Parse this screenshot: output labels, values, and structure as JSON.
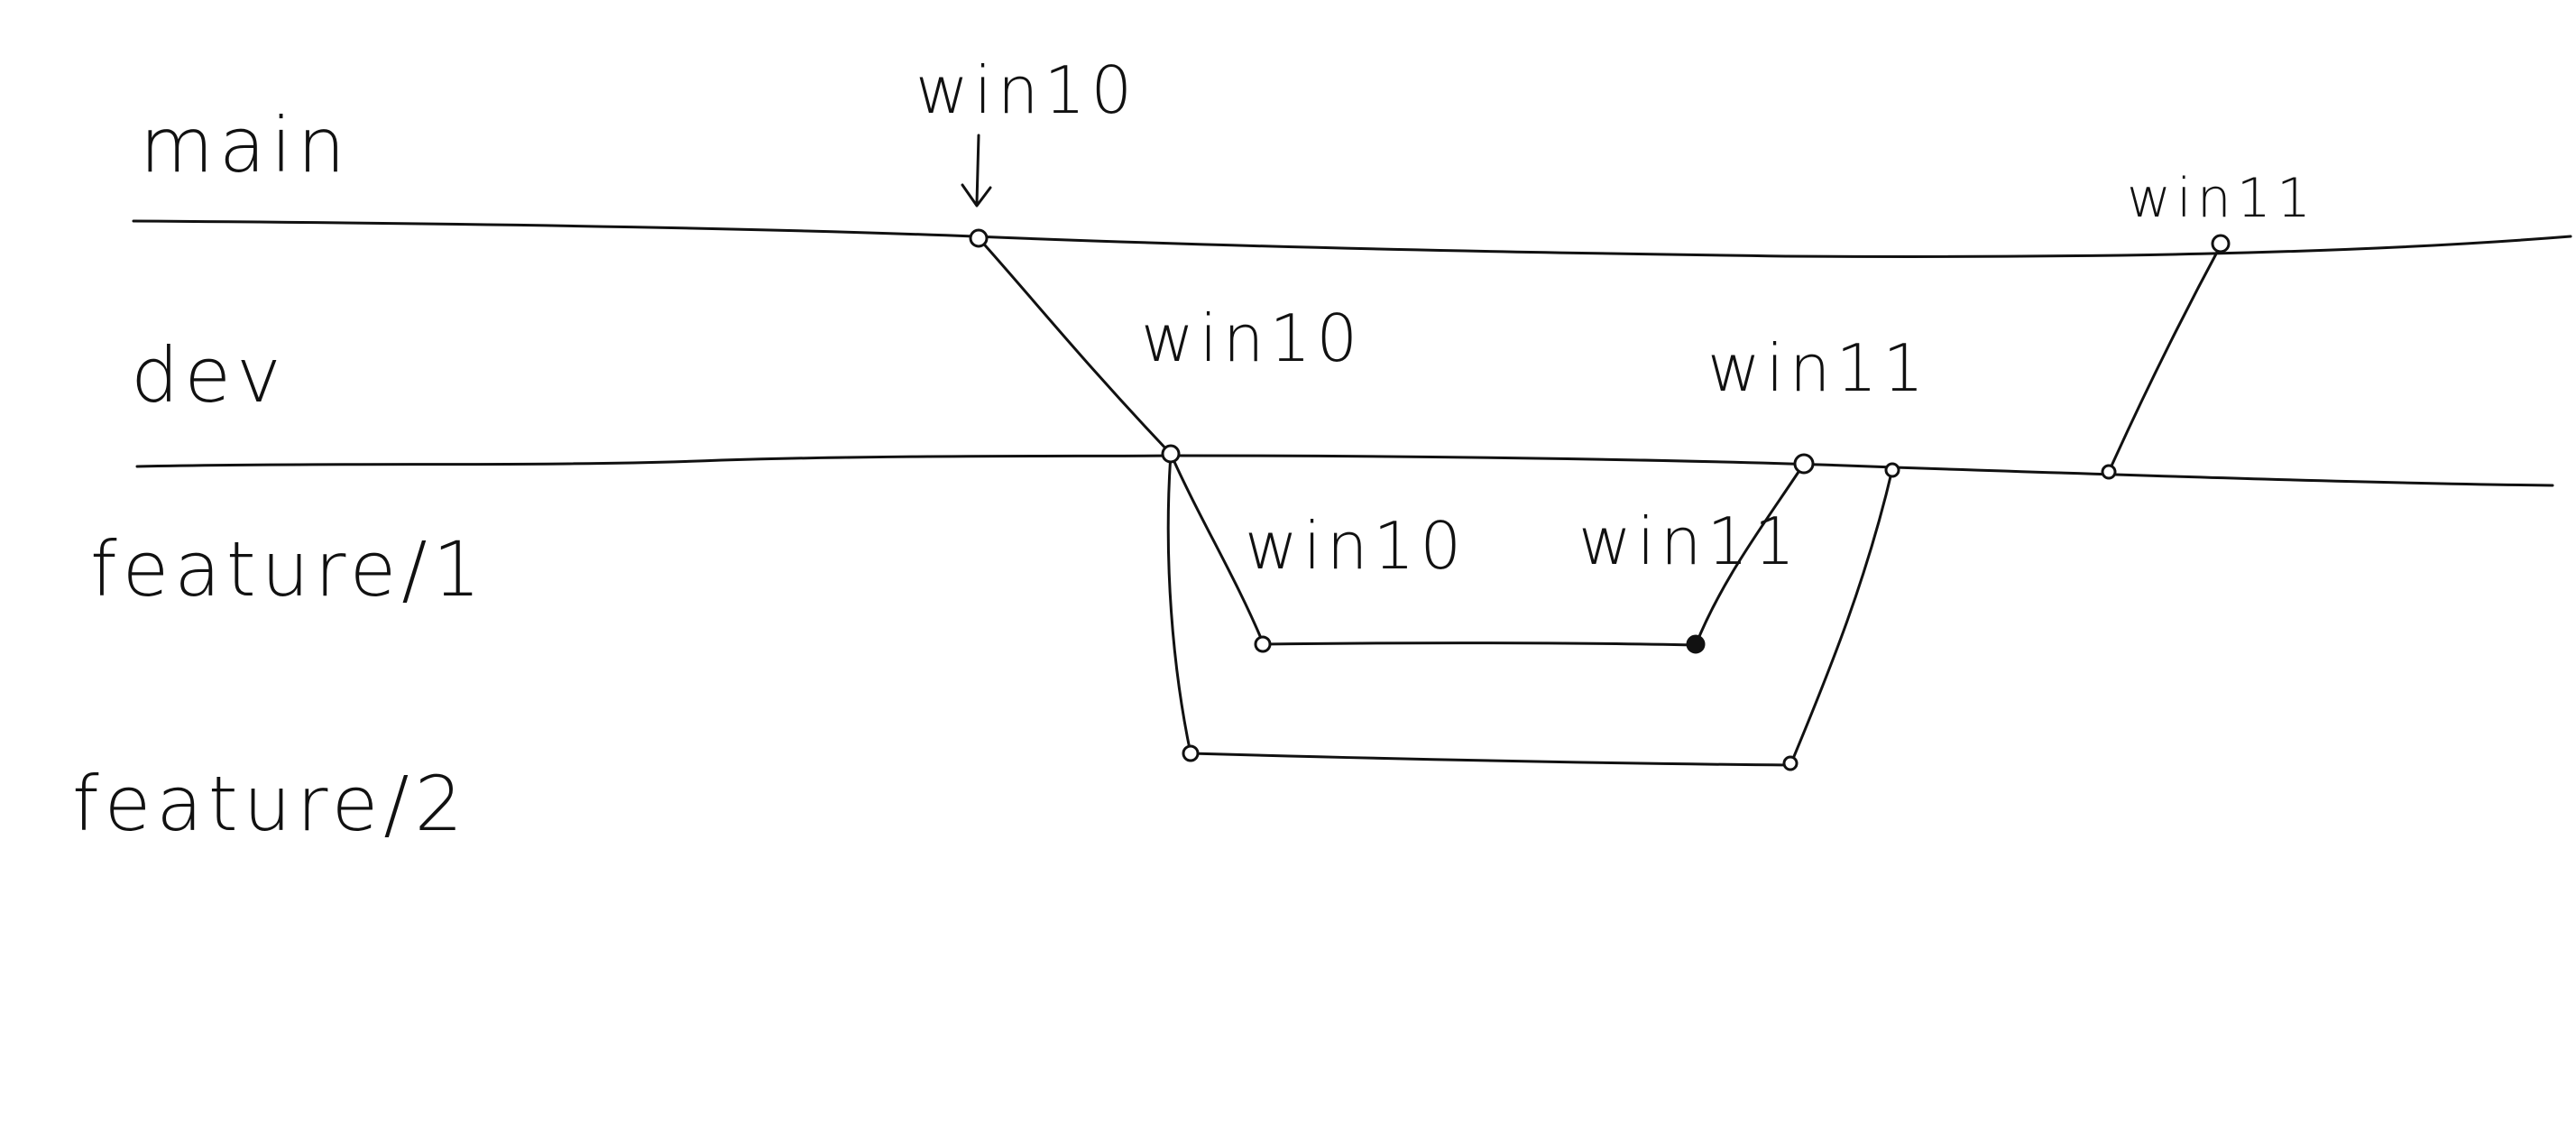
{
  "diagram": {
    "branches": [
      {
        "id": "main",
        "label": "main"
      },
      {
        "id": "dev",
        "label": "dev"
      },
      {
        "id": "feature1",
        "label": "feature/1"
      },
      {
        "id": "feature2",
        "label": "feature/2"
      }
    ],
    "annotations": {
      "main_win10": "win10",
      "main_win11": "win11",
      "dev_win10": "win10",
      "dev_win11": "win11",
      "feature1_win10": "win10",
      "feature1_win11": "win11"
    },
    "style": {
      "ink": "#111111",
      "background": "#ffffff"
    }
  }
}
